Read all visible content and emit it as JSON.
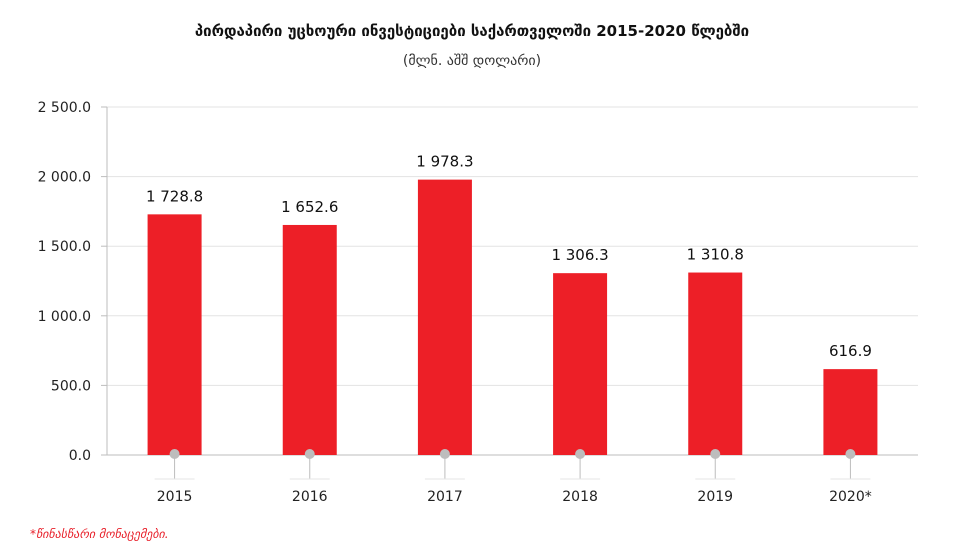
{
  "chart_data": {
    "type": "bar",
    "title": "პირდაპირი უცხოური ინვესტიციები საქართველოში 2015-2020 წლებში",
    "subtitle": "(მლნ. აშშ დოლარი)",
    "categories": [
      "2015",
      "2016",
      "2017",
      "2018",
      "2019",
      "2020*"
    ],
    "values": [
      1728.8,
      1652.6,
      1978.3,
      1306.3,
      1310.8,
      616.9
    ],
    "value_labels": [
      "1 728.8",
      "1 652.6",
      "1 978.3",
      "1 306.3",
      "1 310.8",
      "616.9"
    ],
    "yticks": [
      0,
      500,
      1000,
      1500,
      2000,
      2500
    ],
    "ytick_labels": [
      "0.0",
      "500.0",
      "1 000.0",
      "1 500.0",
      "2 000.0",
      "2 500.0"
    ],
    "ylim": [
      0,
      2500
    ],
    "xlabel": "",
    "ylabel": "",
    "grid": true,
    "bar_color": "#ed1f27",
    "footnote": "*წინასწარი მონაცემები."
  }
}
